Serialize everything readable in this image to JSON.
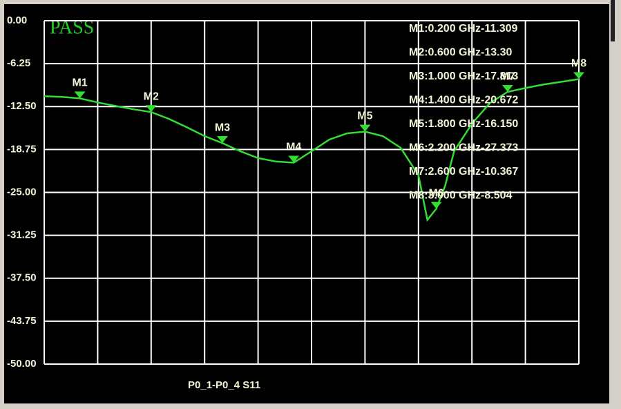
{
  "chart_data": {
    "type": "line",
    "status": "PASS",
    "x": [
      0.0,
      0.1,
      0.2,
      0.3,
      0.4,
      0.5,
      0.6,
      0.7,
      0.8,
      0.9,
      1.0,
      1.1,
      1.2,
      1.3,
      1.4,
      1.5,
      1.6,
      1.7,
      1.8,
      1.9,
      2.0,
      2.1,
      2.15,
      2.2,
      2.25,
      2.3,
      2.4,
      2.5,
      2.6,
      2.7,
      2.8,
      2.9,
      3.0
    ],
    "series": [
      {
        "name": "P0_1-P0_4  S11",
        "color": "#33dd33",
        "values": [
          -11.0,
          -11.1,
          -11.309,
          -11.9,
          -12.4,
          -12.9,
          -13.3,
          -14.3,
          -15.5,
          -16.8,
          -17.813,
          -19.0,
          -20.0,
          -20.5,
          -20.672,
          -19.0,
          -17.3,
          -16.4,
          -16.15,
          -16.8,
          -18.5,
          -22.5,
          -29.0,
          -27.373,
          -24.0,
          -19.0,
          -15.0,
          -12.0,
          -10.367,
          -9.8,
          -9.3,
          -8.9,
          -8.504
        ]
      }
    ],
    "markers": [
      {
        "name": "M1",
        "x": 0.2,
        "value": -11.309,
        "readout": "M1:0.200 GHz-11.309"
      },
      {
        "name": "M2",
        "x": 0.6,
        "value": -13.3,
        "readout": "M2:0.600 GHz-13.30"
      },
      {
        "name": "M3",
        "x": 1.0,
        "value": -17.813,
        "readout": "M3:1.000 GHz-17.813"
      },
      {
        "name": "M4",
        "x": 1.4,
        "value": -20.672,
        "readout": "M4:1.400 GHz-20.672"
      },
      {
        "name": "M5",
        "x": 1.8,
        "value": -16.15,
        "readout": "M5:1.800 GHz-16.150"
      },
      {
        "name": "M6",
        "x": 2.2,
        "value": -27.373,
        "readout": "M6:2.200 GHz-27.373"
      },
      {
        "name": "M7",
        "x": 2.6,
        "value": -10.367,
        "readout": "M7:2.600 GHz-10.367"
      },
      {
        "name": "M8",
        "x": 3.0,
        "value": -8.504,
        "readout": "M8:3.000 GHz-8.504"
      }
    ],
    "xlim": [
      0,
      3.0
    ],
    "xticks": [
      0,
      0.3,
      0.6,
      0.9,
      1.2,
      1.5,
      1.8,
      2.1,
      2.4,
      2.7,
      3.0
    ],
    "ylim": [
      -50,
      0
    ],
    "yticks": [
      {
        "value": 0,
        "label": "0.00"
      },
      {
        "value": -6.25,
        "label": "-6.25"
      },
      {
        "value": -12.5,
        "label": "-12.50"
      },
      {
        "value": -18.75,
        "label": "-18.75"
      },
      {
        "value": -25,
        "label": "-25.00"
      },
      {
        "value": -31.25,
        "label": "-31.25"
      },
      {
        "value": -37.5,
        "label": "-37.50"
      },
      {
        "value": -43.75,
        "label": "-43.75"
      },
      {
        "value": -50,
        "label": "-50.00"
      }
    ],
    "grid": true
  }
}
